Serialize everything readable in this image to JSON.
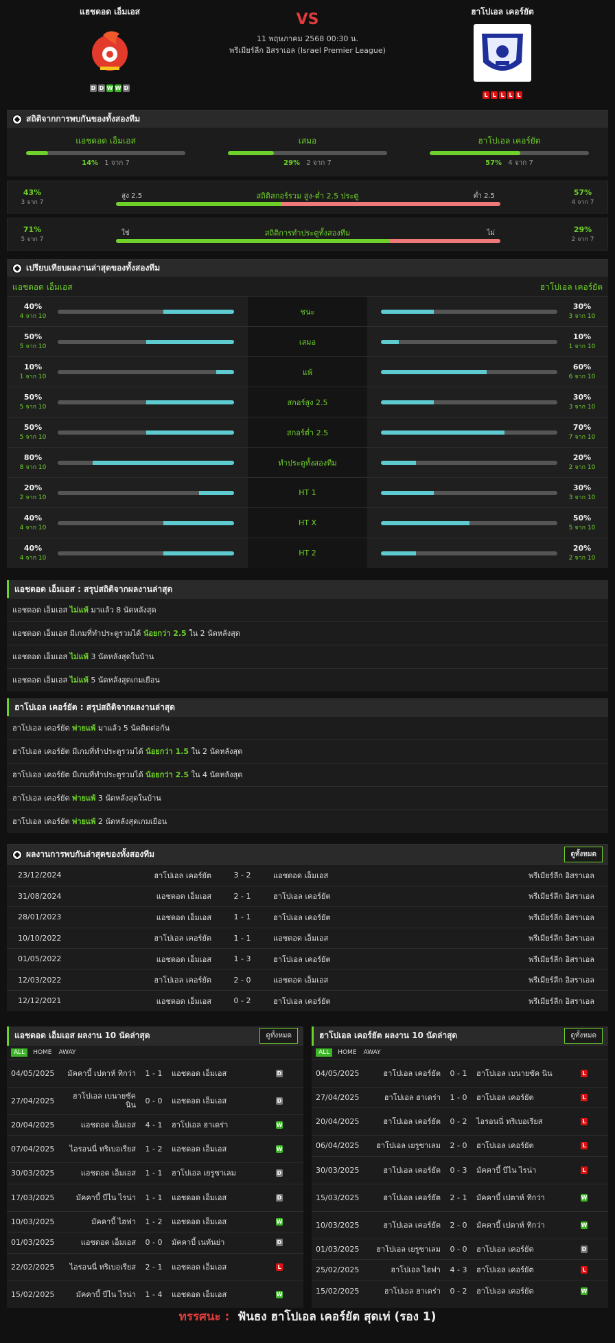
{
  "header": {
    "home": "แฮชดอด เอ็มเอส",
    "away": "ฮาโปเอล เคอร์ยัต",
    "vs": "VS",
    "datetime": "11 พฤษภาคม 2568 00:30 น.",
    "league": "พรีเมียร์ลีก อิสราเอล (Israel Premier League)",
    "home_form": [
      "D",
      "D",
      "W",
      "W",
      "D"
    ],
    "away_form": [
      "L",
      "L",
      "L",
      "L",
      "L"
    ]
  },
  "h2h_stats": {
    "title": "สถิติจากการพบกันของทั้งสองทีม",
    "cols": [
      {
        "label": "แอชดอด เอ็มเอส",
        "pct": "14%",
        "sub": "1 จาก 7",
        "fill": 14
      },
      {
        "label": "เสมอ",
        "pct": "29%",
        "sub": "2 จาก 7",
        "fill": 29
      },
      {
        "label": "ฮาโปเอล เคอร์ยัต",
        "pct": "57%",
        "sub": "4 จาก 7",
        "fill": 57
      }
    ],
    "ou": {
      "left_pct": "43%",
      "left_sub": "3 จาก 7",
      "left_label": "สูง 2.5",
      "title": "สถิติสกอร์รวม สูง-ต่ำ 2.5 ประตู",
      "right_label": "ต่ำ 2.5",
      "right_pct": "57%",
      "right_sub": "4 จาก 7",
      "fill": 43
    },
    "btts": {
      "left_pct": "71%",
      "left_sub": "5 จาก 7",
      "left_label": "ใช่",
      "title": "สถิติการทำประตูทั้งสองทีม",
      "right_label": "ไม่",
      "right_pct": "29%",
      "right_sub": "2 จาก 7",
      "fill": 71
    }
  },
  "compare": {
    "title": "เปรียบเทียบผลงานล่าสุดของทั้งสองทีม",
    "home": "แอชดอด เอ็มเอส",
    "away": "ฮาโปเอล เคอร์ยัต",
    "rows": [
      {
        "label": "ชนะ",
        "lp": "40%",
        "ls": "4 จาก 10",
        "lf": 40,
        "rp": "30%",
        "rs": "3 จาก 10",
        "rf": 30
      },
      {
        "label": "เสมอ",
        "lp": "50%",
        "ls": "5 จาก 10",
        "lf": 50,
        "rp": "10%",
        "rs": "1 จาก 10",
        "rf": 10
      },
      {
        "label": "แพ้",
        "lp": "10%",
        "ls": "1 จาก 10",
        "lf": 10,
        "rp": "60%",
        "rs": "6 จาก 10",
        "rf": 60
      },
      {
        "label": "สกอร์สูง 2.5",
        "lp": "50%",
        "ls": "5 จาก 10",
        "lf": 50,
        "rp": "30%",
        "rs": "3 จาก 10",
        "rf": 30
      },
      {
        "label": "สกอร์ต่ำ 2.5",
        "lp": "50%",
        "ls": "5 จาก 10",
        "lf": 50,
        "rp": "70%",
        "rs": "7 จาก 10",
        "rf": 70
      },
      {
        "label": "ทำประตูทั้งสองทีม",
        "lp": "80%",
        "ls": "8 จาก 10",
        "lf": 80,
        "rp": "20%",
        "rs": "2 จาก 10",
        "rf": 20
      },
      {
        "label": "HT 1",
        "lp": "20%",
        "ls": "2 จาก 10",
        "lf": 20,
        "rp": "30%",
        "rs": "3 จาก 10",
        "rf": 30
      },
      {
        "label": "HT X",
        "lp": "40%",
        "ls": "4 จาก 10",
        "lf": 40,
        "rp": "50%",
        "rs": "5 จาก 10",
        "rf": 50
      },
      {
        "label": "HT 2",
        "lp": "40%",
        "ls": "4 จาก 10",
        "lf": 40,
        "rp": "20%",
        "rs": "2 จาก 10",
        "rf": 20
      }
    ]
  },
  "summary_home": {
    "title": "แอชดอด เอ็มเอส : สรุปสถิติจากผลงานล่าสุด",
    "lines": [
      {
        "team": "แอชดอด เอ็มเอส",
        "a": "",
        "h": "ไม่แพ้",
        "b": "มาแล้ว 8 นัดหลังสุด"
      },
      {
        "team": "แอชดอด เอ็มเอส",
        "a": "มีเกมที่ทำประตูรวมได้",
        "h": "น้อยกว่า 2.5",
        "b": "ใน 2 นัดหลังสุด"
      },
      {
        "team": "แอชดอด เอ็มเอส",
        "a": "",
        "h": "ไม่แพ้",
        "b": "3 นัดหลังสุดในบ้าน"
      },
      {
        "team": "แอชดอด เอ็มเอส",
        "a": "",
        "h": "ไม่แพ้",
        "b": "5 นัดหลังสุดเกมเยือน"
      }
    ]
  },
  "summary_away": {
    "title": "ฮาโปเอล เคอร์ยัต : สรุปสถิติจากผลงานล่าสุด",
    "lines": [
      {
        "team": "ฮาโปเอล เคอร์ยัต",
        "a": "",
        "h": "พ่ายแพ้",
        "b": "มาแล้ว 5 นัดติดต่อกัน"
      },
      {
        "team": "ฮาโปเอล เคอร์ยัต",
        "a": "มีเกมที่ทำประตูรวมได้",
        "h": "น้อยกว่า 1.5",
        "b": "ใน 2 นัดหลังสุด"
      },
      {
        "team": "ฮาโปเอล เคอร์ยัต",
        "a": "มีเกมที่ทำประตูรวมได้",
        "h": "น้อยกว่า 2.5",
        "b": "ใน 4 นัดหลังสุด"
      },
      {
        "team": "ฮาโปเอล เคอร์ยัต",
        "a": "",
        "h": "พ่ายแพ้",
        "b": "3 นัดหลังสุดในบ้าน"
      },
      {
        "team": "ฮาโปเอล เคอร์ยัต",
        "a": "",
        "h": "พ่ายแพ้",
        "b": "2 นัดหลังสุดเกมเยือน"
      }
    ]
  },
  "h2h": {
    "title": "ผลงานการพบกันล่าสุดของทั้งสองทีม",
    "view_all": "ดูทั้งหมด",
    "rows": [
      {
        "date": "23/12/2024",
        "home": "ฮาโปเอล เคอร์ยัต",
        "score": "3 - 2",
        "away": "แอชดอด เอ็มเอส",
        "league": "พรีเมียร์ลีก อิสราเอล"
      },
      {
        "date": "31/08/2024",
        "home": "แอชดอด เอ็มเอส",
        "score": "2 - 1",
        "away": "ฮาโปเอล เคอร์ยัต",
        "league": "พรีเมียร์ลีก อิสราเอล"
      },
      {
        "date": "28/01/2023",
        "home": "แอชดอด เอ็มเอส",
        "score": "1 - 1",
        "away": "ฮาโปเอล เคอร์ยัต",
        "league": "พรีเมียร์ลีก อิสราเอล"
      },
      {
        "date": "10/10/2022",
        "home": "ฮาโปเอล เคอร์ยัต",
        "score": "1 - 1",
        "away": "แอชดอด เอ็มเอส",
        "league": "พรีเมียร์ลีก อิสราเอล"
      },
      {
        "date": "01/05/2022",
        "home": "แอชดอด เอ็มเอส",
        "score": "1 - 3",
        "away": "ฮาโปเอล เคอร์ยัต",
        "league": "พรีเมียร์ลีก อิสราเอล"
      },
      {
        "date": "12/03/2022",
        "home": "ฮาโปเอล เคอร์ยัต",
        "score": "2 - 0",
        "away": "แอชดอด เอ็มเอส",
        "league": "พรีเมียร์ลีก อิสราเอล"
      },
      {
        "date": "12/12/2021",
        "home": "แอชดอด เอ็มเอส",
        "score": "0 - 2",
        "away": "ฮาโปเอล เคอร์ยัต",
        "league": "พรีเมียร์ลีก อิสราเอล"
      }
    ]
  },
  "last10_home": {
    "title": "แอชดอด เอ็มเอส ผลงาน 10 นัดล่าสุด",
    "view_all": "ดูทั้งหมด",
    "tabs": [
      "ALL",
      "HOME",
      "AWAY"
    ],
    "rows": [
      {
        "date": "04/05/2025",
        "home": "มัคคาบี้ เปตาห์ ทิกว่า",
        "score": "1 - 1",
        "away": "แอชดอด เอ็มเอส",
        "r": "D"
      },
      {
        "date": "27/04/2025",
        "home": "ฮาโปเอล เบนายซัค นิน",
        "score": "0 - 0",
        "away": "แอชดอด เอ็มเอส",
        "r": "D"
      },
      {
        "date": "20/04/2025",
        "home": "แอชดอด เอ็มเอส",
        "score": "4 - 1",
        "away": "ฮาโปเอล ฮาเดร่า",
        "r": "W"
      },
      {
        "date": "07/04/2025",
        "home": "ไอรอนนี่ ทริเบอเรียส",
        "score": "1 - 2",
        "away": "แอชดอด เอ็มเอส",
        "r": "W"
      },
      {
        "date": "30/03/2025",
        "home": "แอชดอด เอ็มเอส",
        "score": "1 - 1",
        "away": "ฮาโปเอล เยรูซาเลม",
        "r": "D"
      },
      {
        "date": "17/03/2025",
        "home": "มัคคาบี้ บีไน ไรน่า",
        "score": "1 - 1",
        "away": "แอชดอด เอ็มเอส",
        "r": "D"
      },
      {
        "date": "10/03/2025",
        "home": "มัคคาบี้ ไฮฟา",
        "score": "1 - 2",
        "away": "แอชดอด เอ็มเอส",
        "r": "W"
      },
      {
        "date": "01/03/2025",
        "home": "แอชดอด เอ็มเอส",
        "score": "0 - 0",
        "away": "มัคคาบี้ เนทันย่า",
        "r": "D"
      },
      {
        "date": "22/02/2025",
        "home": "ไอรอนนี่ ทริเบอเรียส",
        "score": "2 - 1",
        "away": "แอชดอด เอ็มเอส",
        "r": "L"
      },
      {
        "date": "15/02/2025",
        "home": "มัคคาบี้ บีไน ไรน่า",
        "score": "1 - 4",
        "away": "แอชดอด เอ็มเอส",
        "r": "W"
      }
    ]
  },
  "last10_away": {
    "title": "ฮาโปเอล เคอร์ยัต ผลงาน 10 นัดล่าสุด",
    "view_all": "ดูทั้งหมด",
    "tabs": [
      "ALL",
      "HOME",
      "AWAY"
    ],
    "rows": [
      {
        "date": "04/05/2025",
        "home": "ฮาโปเอล เคอร์ยัต",
        "score": "0 - 1",
        "away": "ฮาโปเอล เบนายซัค นิน",
        "r": "L"
      },
      {
        "date": "27/04/2025",
        "home": "ฮาโปเอล ฮาเดร่า",
        "score": "1 - 0",
        "away": "ฮาโปเอล เคอร์ยัต",
        "r": "L"
      },
      {
        "date": "20/04/2025",
        "home": "ฮาโปเอล เคอร์ยัต",
        "score": "0 - 2",
        "away": "ไอรอนนี่ ทริเบอเรียส",
        "r": "L"
      },
      {
        "date": "06/04/2025",
        "home": "ฮาโปเอล เยรูซาเลม",
        "score": "2 - 0",
        "away": "ฮาโปเอล เคอร์ยัต",
        "r": "L"
      },
      {
        "date": "30/03/2025",
        "home": "ฮาโปเอล เคอร์ยัต",
        "score": "0 - 3",
        "away": "มัคคาบี้ บีไน ไรน่า",
        "r": "L"
      },
      {
        "date": "15/03/2025",
        "home": "ฮาโปเอล เคอร์ยัต",
        "score": "2 - 1",
        "away": "มัคคาบี้ เปตาห์ ทิกว่า",
        "r": "W"
      },
      {
        "date": "10/03/2025",
        "home": "ฮาโปเอล เคอร์ยัต",
        "score": "2 - 0",
        "away": "มัคคาบี้ เปตาห์ ทิกว่า",
        "r": "W"
      },
      {
        "date": "01/03/2025",
        "home": "ฮาโปเอล เยรูซาเลม",
        "score": "0 - 0",
        "away": "ฮาโปเอล เคอร์ยัต",
        "r": "D"
      },
      {
        "date": "25/02/2025",
        "home": "ฮาโปเอล ไฮฟา",
        "score": "4 - 3",
        "away": "ฮาโปเอล เคอร์ยัต",
        "r": "L"
      },
      {
        "date": "15/02/2025",
        "home": "ฮาโปเอล ฮาเดร่า",
        "score": "0 - 2",
        "away": "ฮาโปเอล เคอร์ยัต",
        "r": "W"
      }
    ]
  },
  "prediction": {
    "label": "ทรรศนะ :",
    "text": "ฟันธง ฮาโปเอล เคอร์ยัต สุดเท่ (รอง 1)"
  },
  "colors": {
    "accent": "#6fd22b",
    "bar_home": "#6fd22b",
    "bar_away": "#5ecbd0",
    "bar_red": "#f07a7a"
  }
}
